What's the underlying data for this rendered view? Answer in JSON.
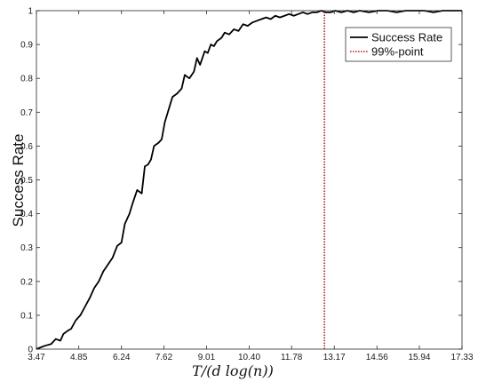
{
  "chart_data": {
    "type": "line",
    "title": "",
    "xlabel": "T/(d log(n))",
    "ylabel": "Success Rate",
    "xlim": [
      3.47,
      17.33
    ],
    "ylim": [
      0,
      1
    ],
    "x_ticks": [
      3.47,
      4.85,
      6.24,
      7.62,
      9.01,
      10.4,
      11.78,
      13.17,
      14.56,
      15.94,
      17.33
    ],
    "x_tick_labels": [
      "3.47",
      "4.85",
      "6.24",
      "7.62",
      "9.01",
      "10.40",
      "11.78",
      "13.17",
      "14.56",
      "15.94",
      "17.33"
    ],
    "y_ticks": [
      0,
      0.1,
      0.2,
      0.3,
      0.4,
      0.5,
      0.6,
      0.7,
      0.8,
      0.9,
      1
    ],
    "y_tick_labels": [
      "0",
      "0.1",
      "0.2",
      "0.3",
      "0.4",
      "0.5",
      "0.6",
      "0.7",
      "0.8",
      "0.9",
      "1"
    ],
    "grid": false,
    "legend_position": "top-right",
    "series": [
      {
        "name": "Success Rate",
        "color": "#000000",
        "style": "solid",
        "x": [
          3.47,
          3.6,
          3.75,
          3.95,
          4.1,
          4.25,
          4.35,
          4.5,
          4.6,
          4.75,
          4.9,
          5.05,
          5.2,
          5.35,
          5.5,
          5.65,
          5.8,
          5.95,
          6.1,
          6.24,
          6.35,
          6.5,
          6.6,
          6.75,
          6.9,
          7.0,
          7.1,
          7.2,
          7.3,
          7.45,
          7.55,
          7.65,
          7.75,
          7.9,
          8.05,
          8.2,
          8.3,
          8.45,
          8.6,
          8.7,
          8.8,
          8.95,
          9.05,
          9.15,
          9.25,
          9.35,
          9.5,
          9.6,
          9.75,
          9.9,
          10.05,
          10.2,
          10.35,
          10.5,
          10.65,
          10.8,
          10.95,
          11.1,
          11.25,
          11.4,
          11.55,
          11.7,
          11.85,
          12.0,
          12.15,
          12.3,
          12.45,
          12.6,
          12.75,
          12.9,
          13.05,
          13.2,
          13.4,
          13.6,
          13.8,
          14.0,
          14.3,
          14.6,
          14.9,
          15.2,
          15.5,
          15.8,
          16.1,
          16.4,
          16.7,
          17.0,
          17.33
        ],
        "y": [
          0,
          0.005,
          0.01,
          0.015,
          0.03,
          0.025,
          0.045,
          0.055,
          0.06,
          0.085,
          0.1,
          0.125,
          0.15,
          0.18,
          0.2,
          0.23,
          0.25,
          0.27,
          0.305,
          0.315,
          0.37,
          0.4,
          0.43,
          0.47,
          0.46,
          0.54,
          0.545,
          0.56,
          0.6,
          0.61,
          0.62,
          0.67,
          0.7,
          0.745,
          0.755,
          0.77,
          0.81,
          0.8,
          0.82,
          0.86,
          0.84,
          0.88,
          0.875,
          0.9,
          0.895,
          0.91,
          0.92,
          0.935,
          0.93,
          0.945,
          0.94,
          0.96,
          0.955,
          0.965,
          0.97,
          0.975,
          0.98,
          0.975,
          0.985,
          0.98,
          0.985,
          0.99,
          0.985,
          0.99,
          0.995,
          0.99,
          0.995,
          0.995,
          1,
          0.995,
          0.995,
          1,
          0.995,
          1,
          0.995,
          1,
          0.995,
          1,
          1,
          0.995,
          1,
          1,
          1,
          0.995,
          1,
          1,
          1
        ]
      },
      {
        "name": "99%-point",
        "color": "#b22222",
        "style": "dotted",
        "x": [
          12.85,
          12.85
        ],
        "y": [
          0,
          1
        ]
      }
    ]
  }
}
